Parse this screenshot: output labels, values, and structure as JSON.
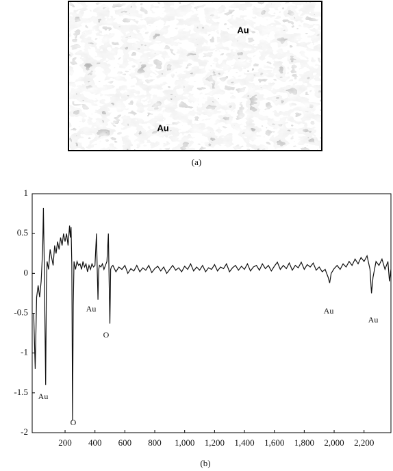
{
  "figure_a": {
    "labels": [
      "Au",
      "Au"
    ],
    "caption": "(a)"
  },
  "chart_data": {
    "type": "line",
    "caption": "(b)",
    "xlim": [
      -20,
      2380
    ],
    "ylim": [
      -2,
      1
    ],
    "xticks": [
      200,
      400,
      600,
      800,
      {
        "value": 1000,
        "label": "1,000"
      },
      {
        "value": 1200,
        "label": "1,200"
      },
      {
        "value": 1400,
        "label": "1,400"
      },
      {
        "value": 1600,
        "label": "1,600"
      },
      {
        "value": 1800,
        "label": "1,800"
      },
      {
        "value": 2000,
        "label": "2,000"
      },
      {
        "value": 2200,
        "label": "2,200"
      }
    ],
    "yticks": [
      1,
      0.5,
      0,
      -0.5,
      -1,
      -1.5,
      -2
    ],
    "annotations": [
      "Au",
      "O",
      "Au",
      "O",
      "Au",
      "Au"
    ],
    "series": [
      {
        "color": "#111111",
        "x": [
          -10,
          0,
          10,
          20,
          30,
          40,
          50,
          55,
          60,
          65,
          70,
          75,
          80,
          90,
          100,
          110,
          120,
          130,
          140,
          150,
          160,
          170,
          180,
          190,
          200,
          210,
          220,
          230,
          235,
          240,
          245,
          250,
          255,
          260,
          270,
          280,
          290,
          300,
          310,
          320,
          330,
          340,
          350,
          360,
          370,
          380,
          390,
          400,
          410,
          415,
          420,
          425,
          430,
          440,
          450,
          460,
          470,
          480,
          490,
          495,
          500,
          505,
          510,
          520,
          540,
          560,
          580,
          600,
          620,
          640,
          660,
          680,
          700,
          720,
          740,
          760,
          780,
          800,
          820,
          840,
          860,
          880,
          900,
          920,
          940,
          960,
          980,
          1000,
          1020,
          1040,
          1060,
          1080,
          1100,
          1120,
          1140,
          1160,
          1180,
          1200,
          1220,
          1240,
          1260,
          1280,
          1300,
          1320,
          1340,
          1360,
          1380,
          1400,
          1420,
          1440,
          1460,
          1480,
          1500,
          1520,
          1540,
          1560,
          1580,
          1600,
          1620,
          1640,
          1660,
          1680,
          1700,
          1720,
          1740,
          1760,
          1780,
          1800,
          1820,
          1840,
          1860,
          1880,
          1900,
          1920,
          1940,
          1960,
          1970,
          1980,
          2000,
          2020,
          2040,
          2060,
          2080,
          2100,
          2120,
          2140,
          2160,
          2180,
          2200,
          2220,
          2240,
          2250,
          2260,
          2280,
          2300,
          2320,
          2340,
          2360,
          2370,
          2380
        ],
        "values": [
          -0.5,
          -1.2,
          -0.3,
          -0.15,
          -0.3,
          -0.1,
          0.3,
          0.82,
          0.2,
          -0.6,
          -1.4,
          -0.2,
          0.15,
          0.05,
          0.3,
          0.2,
          0.1,
          0.35,
          0.25,
          0.4,
          0.3,
          0.45,
          0.35,
          0.5,
          0.4,
          0.5,
          0.35,
          0.6,
          0.45,
          0.58,
          0.1,
          -1.85,
          -0.4,
          0.15,
          0.05,
          0.15,
          0.1,
          0.12,
          0.05,
          0.15,
          0.08,
          0.12,
          0.02,
          0.1,
          0.05,
          0.12,
          0.08,
          0.1,
          0.5,
          0.05,
          -0.33,
          0.05,
          0.1,
          0.08,
          0.12,
          0.05,
          0.1,
          0.15,
          0.5,
          -0.1,
          -0.63,
          0.05,
          0.08,
          0.1,
          0.02,
          0.08,
          0.05,
          0.1,
          0.0,
          0.06,
          0.03,
          0.1,
          0.02,
          0.07,
          0.04,
          0.1,
          0.01,
          0.06,
          0.09,
          0.03,
          0.08,
          0.0,
          0.05,
          0.1,
          0.04,
          0.07,
          0.02,
          0.09,
          0.05,
          0.12,
          0.03,
          0.08,
          0.04,
          0.1,
          0.02,
          0.07,
          0.05,
          0.11,
          0.03,
          0.08,
          0.06,
          0.12,
          0.02,
          0.07,
          0.1,
          0.04,
          0.09,
          0.05,
          0.12,
          0.03,
          0.08,
          0.1,
          0.04,
          0.12,
          0.06,
          0.1,
          0.03,
          0.09,
          0.14,
          0.05,
          0.1,
          0.06,
          0.13,
          0.04,
          0.1,
          0.07,
          0.14,
          0.05,
          0.11,
          0.08,
          0.13,
          0.04,
          0.08,
          0.02,
          0.05,
          -0.05,
          -0.12,
          0.0,
          0.06,
          0.1,
          0.05,
          0.12,
          0.08,
          0.15,
          0.1,
          0.18,
          0.12,
          0.2,
          0.15,
          0.22,
          0.05,
          -0.25,
          -0.05,
          0.15,
          0.1,
          0.18,
          0.05,
          0.15,
          -0.1,
          0.05
        ]
      }
    ]
  }
}
